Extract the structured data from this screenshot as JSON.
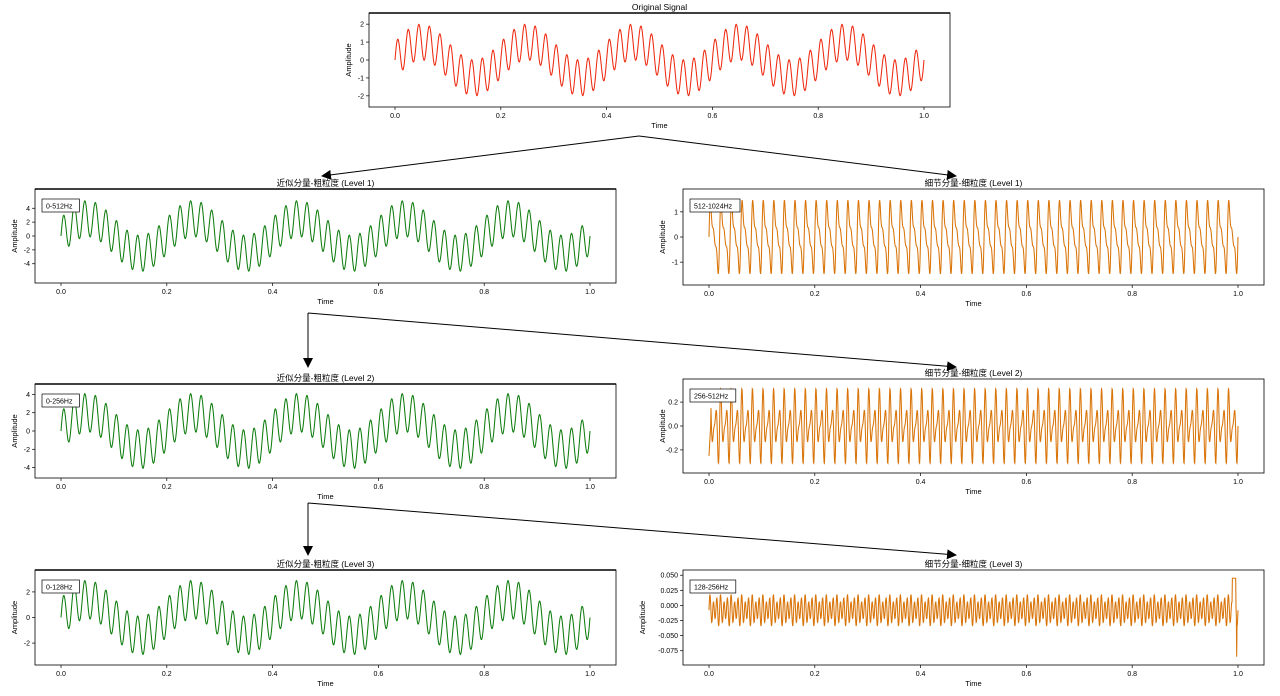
{
  "colors": {
    "original": "#ee2a10",
    "approx": "#0f7d0f",
    "detail": "#d97408",
    "frame": "#000000"
  },
  "charts": {
    "orig": {
      "title": "Original Signal",
      "xlabel": "Time",
      "ylabel": "Amplitude"
    },
    "a1": {
      "title": "近似分量-粗粒度 (Level 1)",
      "xlabel": "Time",
      "ylabel": "Amplitude",
      "band": "0-512Hz"
    },
    "d1": {
      "title": "細节分量-细粒度 (Level 1)",
      "xlabel": "Time",
      "ylabel": "Amplitude",
      "band": "512-1024Hz"
    },
    "a2": {
      "title": "近似分量-粗粒度 (Level 2)",
      "xlabel": "Time",
      "ylabel": "Amplitude",
      "band": "0-256Hz"
    },
    "d2": {
      "title": "细节分量-细粒度 (Level 2)",
      "xlabel": "Time",
      "ylabel": "Amplitude",
      "band": "256-512Hz"
    },
    "a3": {
      "title": "近似分量-粗粒度 (Level 3)",
      "xlabel": "Time",
      "ylabel": "Amplitude",
      "band": "0-128Hz"
    },
    "d3": {
      "title": "细节分量-细粒度 (Level 3)",
      "xlabel": "Time",
      "ylabel": "Amplitude",
      "band": "128-256Hz"
    }
  },
  "chart_data": [
    {
      "id": "orig",
      "type": "line",
      "title": "Original Signal",
      "xlabel": "Time",
      "ylabel": "Amplitude",
      "xlim": [
        0,
        1
      ],
      "ylim": [
        -2.4,
        2.4
      ],
      "xticks": [
        "0.0",
        "0.2",
        "0.4",
        "0.6",
        "0.8",
        "1.0"
      ],
      "yticks": [
        "-2",
        "-1",
        "0",
        "1",
        "2"
      ],
      "series": [
        {
          "components": [
            [
              1.0,
              5
            ],
            [
              1.0,
              50
            ]
          ],
          "amplitude_range": [
            -2.1,
            2.1
          ]
        }
      ]
    },
    {
      "id": "a1",
      "type": "line",
      "title": "近似分量-粗粒度 (Level 1)",
      "xlabel": "Time",
      "ylabel": "Amplitude",
      "xlim": [
        0,
        1
      ],
      "ylim": [
        -6.2,
        6.2
      ],
      "annotation": "0-512Hz",
      "xticks": [
        "0.0",
        "0.2",
        "0.4",
        "0.6",
        "0.8",
        "1.0"
      ],
      "yticks": [
        "-4",
        "-2",
        "0",
        "2",
        "4"
      ],
      "series": [
        {
          "components": [
            [
              2.5,
              5
            ],
            [
              2.6,
              50
            ]
          ],
          "amplitude_range": [
            -5.1,
            5.1
          ]
        }
      ]
    },
    {
      "id": "d1",
      "type": "line",
      "title": "細节分量-细粒度 (Level 1)",
      "xlabel": "Time",
      "ylabel": "Amplitude",
      "xlim": [
        0,
        1
      ],
      "ylim": [
        -1.75,
        1.75
      ],
      "annotation": "512-1024Hz",
      "xticks": [
        "0.0",
        "0.2",
        "0.4",
        "0.6",
        "0.8",
        "1.0"
      ],
      "yticks": [
        "-1",
        "0",
        "1"
      ],
      "series": [
        {
          "components": [
            [
              1.0,
              50
            ],
            [
              0.55,
              100
            ],
            [
              0.3,
              150
            ]
          ],
          "amplitude_range": [
            -1.5,
            1.5
          ]
        }
      ]
    },
    {
      "id": "a2",
      "type": "line",
      "title": "近似分量-粗粒度 (Level 2)",
      "xlabel": "Time",
      "ylabel": "Amplitude",
      "xlim": [
        0,
        1
      ],
      "ylim": [
        -4.7,
        4.7
      ],
      "annotation": "0-256Hz",
      "xticks": [
        "0.0",
        "0.2",
        "0.4",
        "0.6",
        "0.8",
        "1.0"
      ],
      "yticks": [
        "-4",
        "-2",
        "0",
        "2",
        "4"
      ],
      "series": [
        {
          "components": [
            [
              2.0,
              5
            ],
            [
              2.1,
              50
            ]
          ],
          "amplitude_range": [
            -4.1,
            4.1
          ]
        }
      ]
    },
    {
      "id": "d2",
      "type": "line",
      "title": "细节分量-细粒度 (Level 2)",
      "xlabel": "Time",
      "ylabel": "Amplitude",
      "xlim": [
        0,
        1
      ],
      "ylim": [
        -0.36,
        0.36
      ],
      "annotation": "256-512Hz",
      "xticks": [
        "0.0",
        "0.2",
        "0.4",
        "0.6",
        "0.8",
        "1.0"
      ],
      "yticks": [
        "-0.2",
        "0.0",
        "0.2"
      ],
      "series": [
        {
          "components": [
            [
              0.2,
              100
            ],
            [
              0.1,
              150
            ],
            [
              0.05,
              50
            ]
          ],
          "amplitude_range": [
            -0.33,
            0.33
          ]
        }
      ]
    },
    {
      "id": "a3",
      "type": "line",
      "title": "近似分量-粗粒度 (Level 3)",
      "xlabel": "Time",
      "ylabel": "Amplitude",
      "xlim": [
        0,
        1
      ],
      "ylim": [
        -3.4,
        3.4
      ],
      "annotation": "0-128Hz",
      "xticks": [
        "0.0",
        "0.2",
        "0.4",
        "0.6",
        "0.8",
        "1.0"
      ],
      "yticks": [
        "-2",
        "0",
        "2"
      ],
      "series": [
        {
          "components": [
            [
              1.4,
              5
            ],
            [
              1.5,
              50
            ]
          ],
          "amplitude_range": [
            -2.9,
            2.9
          ]
        }
      ]
    },
    {
      "id": "d3",
      "type": "line",
      "title": "细节分量-细粒度 (Level 3)",
      "xlabel": "Time",
      "ylabel": "Amplitude",
      "xlim": [
        0,
        1
      ],
      "ylim": [
        -0.092,
        0.052
      ],
      "annotation": "128-256Hz",
      "xticks": [
        "0.0",
        "0.2",
        "0.4",
        "0.6",
        "0.8",
        "1.0"
      ],
      "yticks": [
        "-0.075",
        "-0.050",
        "-0.025",
        "0.000",
        "0.025",
        "0.050"
      ],
      "series": [
        {
          "components": [
            [
              0.02,
              150
            ],
            [
              0.007,
              100
            ]
          ],
          "amplitude_range": [
            -0.085,
            0.045
          ]
        }
      ]
    }
  ]
}
